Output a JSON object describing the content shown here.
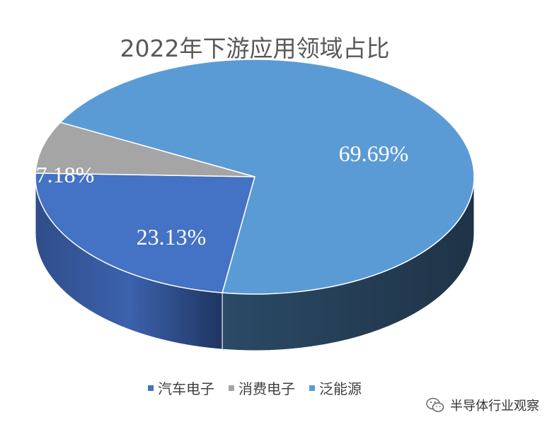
{
  "chart_data": {
    "type": "pie",
    "title": "2022年下游应用领域占比",
    "slices": [
      {
        "label": "汽车电子",
        "value": 23.13,
        "value_label": "23.13%",
        "color": "#4472C4"
      },
      {
        "label": "消费电子",
        "value": 7.18,
        "value_label": "7.18%",
        "color": "#A5A5A5"
      },
      {
        "label": "泛能源",
        "value": 69.69,
        "value_label": "69.69%",
        "color": "#5B9BD5"
      }
    ],
    "legend_position": "bottom",
    "style": "3d"
  },
  "watermark": {
    "text": "半导体行业观察",
    "icon": "wechat-icon"
  }
}
